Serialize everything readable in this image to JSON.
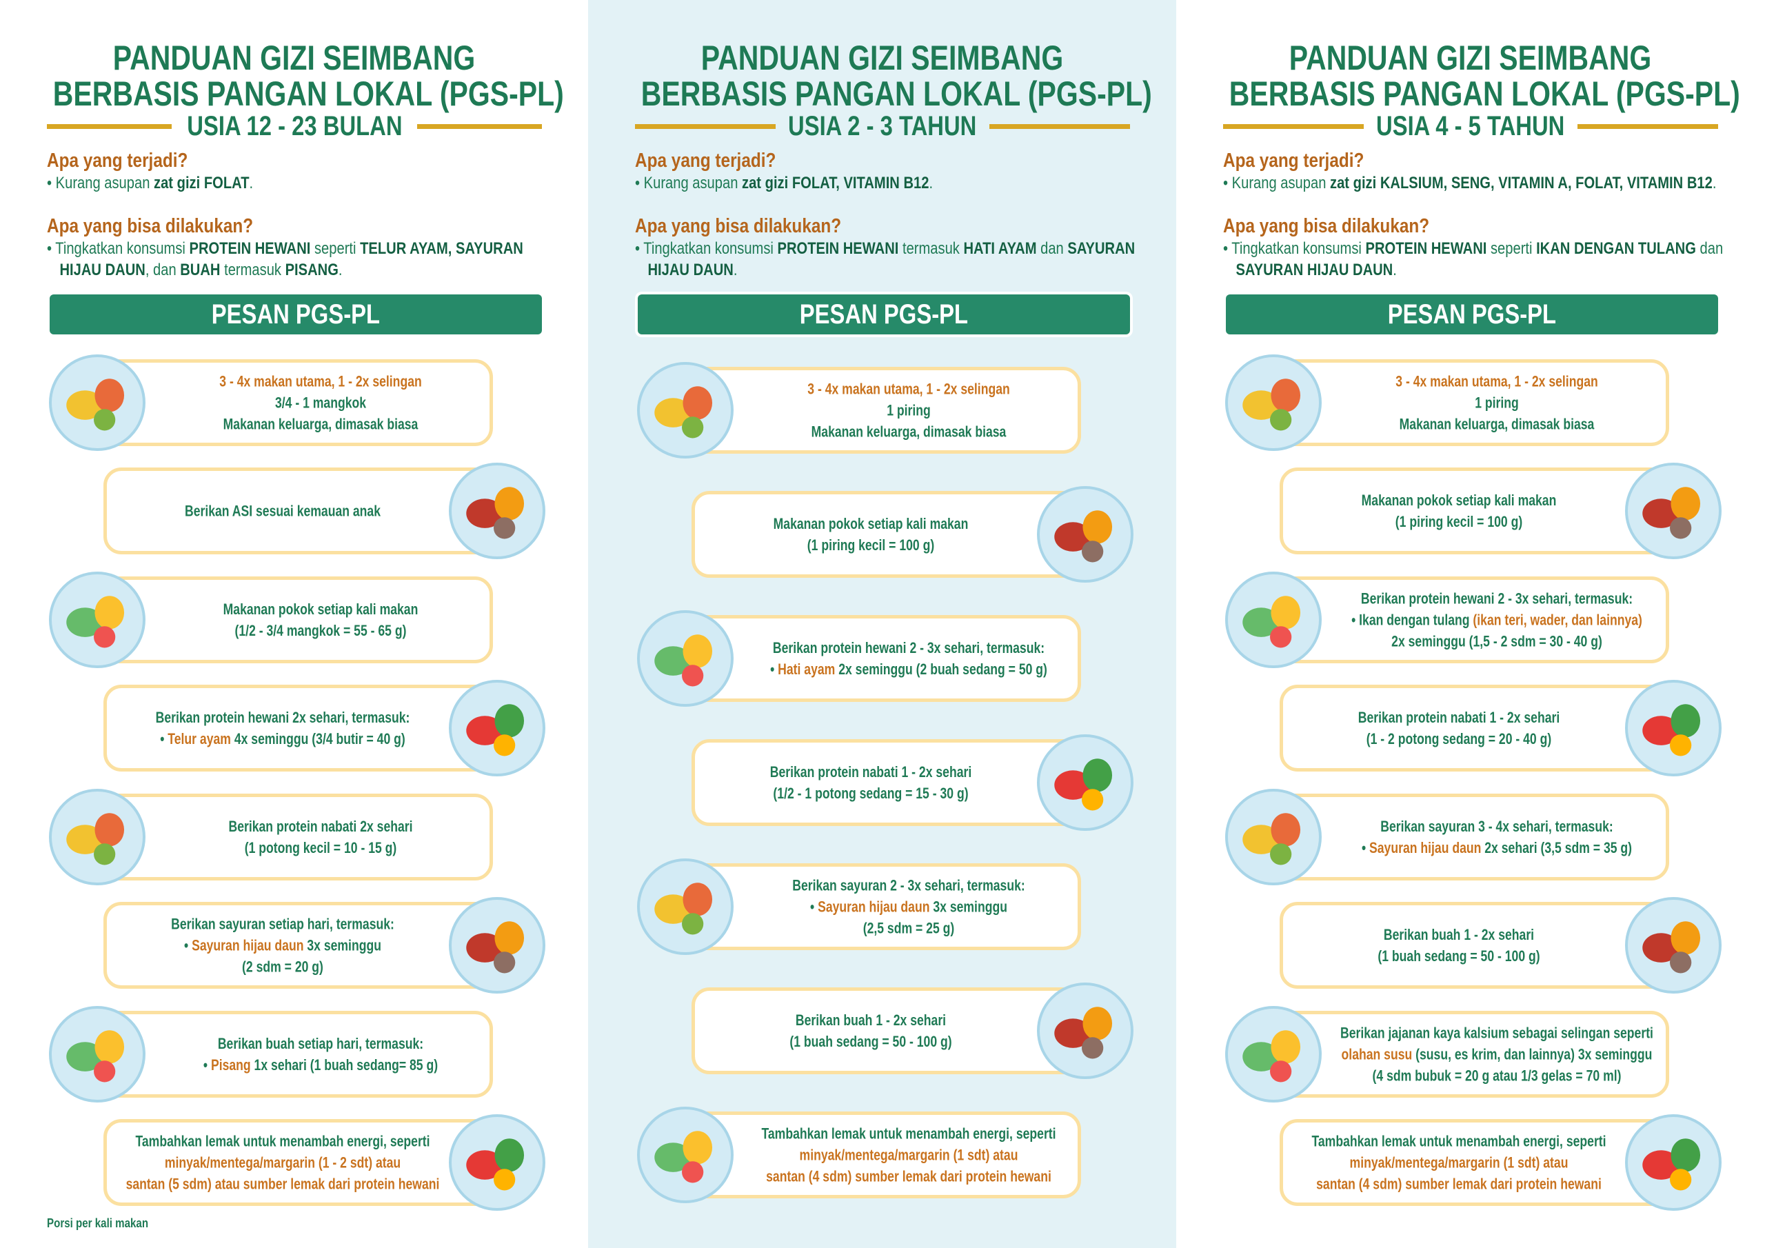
{
  "columns": [
    {
      "title": [
        "PANDUAN GIZI SEIMBANG",
        "BERBASIS PANGAN LOKAL (PGS-PL)"
      ],
      "subtitle": "USIA 12 - 23 BULAN",
      "sections": [
        {
          "heading": "Apa yang terjadi?",
          "items": [
            [
              {
                "text": "•  Kurang asupan "
              },
              {
                "text": "zat gizi FOLAT",
                "bold": true
              },
              {
                "text": "."
              }
            ]
          ]
        },
        {
          "heading": "Apa yang bisa dilakukan?",
          "items": [
            [
              {
                "text": "•  Tingkatkan konsumsi "
              },
              {
                "text": "PROTEIN HEWANI",
                "bold": true
              },
              {
                "text": " seperti "
              },
              {
                "text": "TELUR AYAM, SAYURAN HIJAU DAUN",
                "bold": true
              },
              {
                "text": ", dan "
              },
              {
                "text": "BUAH",
                "bold": true
              },
              {
                "text": " termasuk "
              },
              {
                "text": "PISANG",
                "bold": true
              },
              {
                "text": "."
              }
            ]
          ]
        }
      ],
      "banner": "PESAN PGS-PL",
      "cards": [
        {
          "icon": "left",
          "lines": [
            [
              {
                "text": "3 - 4x makan utama, 1 - 2x selingan",
                "color": "#c9731f"
              }
            ],
            [
              {
                "text": "3/4 - 1 mangkok"
              }
            ],
            [
              {
                "text": "Makanan keluarga, dimasak biasa"
              }
            ]
          ]
        },
        {
          "icon": "right",
          "lines": [
            [
              {
                "text": "Berikan ASI sesuai kemauan anak"
              }
            ]
          ]
        },
        {
          "icon": "left",
          "lines": [
            [
              {
                "text": "Makanan pokok setiap kali makan"
              }
            ],
            [
              {
                "text": "(1/2 - 3/4 mangkok = 55 - 65 g)"
              }
            ]
          ]
        },
        {
          "icon": "right",
          "lines": [
            [
              {
                "text": "Berikan protein hewani 2x sehari, termasuk:"
              }
            ],
            [
              {
                "text": "• "
              },
              {
                "text": "Telur ayam",
                "color": "#c9731f"
              },
              {
                "text": " 4x seminggu  (3/4 butir = 40 g)"
              }
            ]
          ]
        },
        {
          "icon": "left",
          "lines": [
            [
              {
                "text": "Berikan protein nabati 2x sehari"
              }
            ],
            [
              {
                "text": "(1 potong kecil = 10 - 15 g)"
              }
            ]
          ]
        },
        {
          "icon": "right",
          "lines": [
            [
              {
                "text": "Berikan sayuran setiap hari, termasuk:"
              }
            ],
            [
              {
                "text": "• "
              },
              {
                "text": "Sayuran hijau daun",
                "color": "#c9731f"
              },
              {
                "text": " 3x seminggu"
              }
            ],
            [
              {
                "text": "(2 sdm = 20 g)"
              }
            ]
          ]
        },
        {
          "icon": "left",
          "lines": [
            [
              {
                "text": "Berikan buah setiap hari, termasuk:"
              }
            ],
            [
              {
                "text": "• "
              },
              {
                "text": "Pisang",
                "color": "#c9731f"
              },
              {
                "text": " 1x sehari (1 buah sedang= 85 g)"
              }
            ]
          ]
        },
        {
          "icon": "right",
          "lines": [
            [
              {
                "text": "Tambahkan lemak untuk menambah energi, seperti"
              }
            ],
            [
              {
                "text": "minyak/mentega/margarin (1 - 2 sdt) atau",
                "color": "#c9731f"
              }
            ],
            [
              {
                "text": "santan (5 sdm) atau sumber lemak dari protein hewani",
                "color": "#c9731f"
              }
            ]
          ]
        }
      ],
      "footnote": "Porsi per kali makan"
    },
    {
      "title": [
        "PANDUAN GIZI SEIMBANG",
        "BERBASIS PANGAN LOKAL (PGS-PL)"
      ],
      "subtitle": "USIA 2 - 3 TAHUN",
      "sections": [
        {
          "heading": "Apa yang terjadi?",
          "items": [
            [
              {
                "text": "•  Kurang asupan "
              },
              {
                "text": "zat gizi FOLAT, VITAMIN B12",
                "bold": true
              },
              {
                "text": "."
              }
            ]
          ]
        },
        {
          "heading": "Apa yang bisa dilakukan?",
          "items": [
            [
              {
                "text": "•  Tingkatkan konsumsi "
              },
              {
                "text": "PROTEIN HEWANI",
                "bold": true
              },
              {
                "text": " termasuk "
              },
              {
                "text": "HATI AYAM",
                "bold": true
              },
              {
                "text": " dan "
              },
              {
                "text": "SAYURAN HIJAU DAUN",
                "bold": true
              },
              {
                "text": "."
              }
            ]
          ]
        }
      ],
      "banner": "PESAN PGS-PL",
      "cards": [
        {
          "icon": "left",
          "lines": [
            [
              {
                "text": "3 - 4x makan utama, 1 - 2x selingan",
                "color": "#c9731f"
              }
            ],
            [
              {
                "text": "1 piring"
              }
            ],
            [
              {
                "text": "Makanan keluarga, dimasak biasa"
              }
            ]
          ]
        },
        {
          "icon": "right",
          "lines": [
            [
              {
                "text": "Makanan pokok setiap kali makan"
              }
            ],
            [
              {
                "text": "(1 piring kecil = 100 g)"
              }
            ]
          ]
        },
        {
          "icon": "left",
          "lines": [
            [
              {
                "text": "Berikan protein hewani 2 - 3x sehari, termasuk:"
              }
            ],
            [
              {
                "text": "• "
              },
              {
                "text": "Hati ayam",
                "color": "#c9731f"
              },
              {
                "text": " 2x seminggu  (2 buah sedang = 50 g)"
              }
            ]
          ]
        },
        {
          "icon": "right",
          "lines": [
            [
              {
                "text": "Berikan protein nabati 1 - 2x sehari"
              }
            ],
            [
              {
                "text": "(1/2 - 1 potong sedang = 15 - 30 g)"
              }
            ]
          ]
        },
        {
          "icon": "left",
          "lines": [
            [
              {
                "text": "Berikan sayuran 2 - 3x sehari, termasuk:"
              }
            ],
            [
              {
                "text": "• "
              },
              {
                "text": "Sayuran hijau daun",
                "color": "#c9731f"
              },
              {
                "text": " 3x seminggu"
              }
            ],
            [
              {
                "text": "(2,5 sdm = 25 g)"
              }
            ]
          ]
        },
        {
          "icon": "right",
          "lines": [
            [
              {
                "text": "Berikan buah 1 - 2x sehari"
              }
            ],
            [
              {
                "text": "(1 buah sedang = 50 - 100 g)"
              }
            ]
          ]
        },
        {
          "icon": "left",
          "lines": [
            [
              {
                "text": "Tambahkan lemak untuk menambah energi, seperti"
              }
            ],
            [
              {
                "text": "minyak/mentega/margarin (1 sdt) atau",
                "color": "#c9731f"
              }
            ],
            [
              {
                "text": "santan (4 sdm) sumber lemak dari protein hewani",
                "color": "#c9731f"
              }
            ]
          ]
        }
      ]
    },
    {
      "title": [
        "PANDUAN GIZI SEIMBANG",
        "BERBASIS PANGAN LOKAL (PGS-PL)"
      ],
      "subtitle": "USIA 4 - 5 TAHUN",
      "sections": [
        {
          "heading": "Apa yang terjadi?",
          "items": [
            [
              {
                "text": "•  Kurang asupan "
              },
              {
                "text": "zat gizi KALSIUM, SENG, VITAMIN A, FOLAT, VITAMIN B12",
                "bold": true
              },
              {
                "text": "."
              }
            ]
          ]
        },
        {
          "heading": "Apa yang bisa dilakukan?",
          "items": [
            [
              {
                "text": "•  Tingkatkan konsumsi "
              },
              {
                "text": "PROTEIN HEWANI",
                "bold": true
              },
              {
                "text": " seperti "
              },
              {
                "text": "IKAN DENGAN TULANG",
                "bold": true
              },
              {
                "text": " dan "
              },
              {
                "text": "SAYURAN HIJAU DAUN",
                "bold": true
              },
              {
                "text": "."
              }
            ]
          ]
        }
      ],
      "banner": "PESAN PGS-PL",
      "cards": [
        {
          "icon": "left",
          "lines": [
            [
              {
                "text": "3 - 4x makan utama, 1 - 2x selingan",
                "color": "#c9731f"
              }
            ],
            [
              {
                "text": "1 piring"
              }
            ],
            [
              {
                "text": "Makanan keluarga, dimasak biasa"
              }
            ]
          ]
        },
        {
          "icon": "right",
          "lines": [
            [
              {
                "text": "Makanan pokok setiap kali makan"
              }
            ],
            [
              {
                "text": "(1 piring kecil = 100 g)"
              }
            ]
          ]
        },
        {
          "icon": "left",
          "lines": [
            [
              {
                "text": "Berikan protein hewani 2 - 3x sehari, termasuk:"
              }
            ],
            [
              {
                "text": "• Ikan dengan tulang "
              },
              {
                "text": "(ikan teri, wader, dan lainnya)",
                "color": "#c9731f"
              }
            ],
            [
              {
                "text": "2x seminggu (1,5 - 2 sdm = 30 - 40 g)"
              }
            ]
          ]
        },
        {
          "icon": "right",
          "lines": [
            [
              {
                "text": "Berikan protein nabati 1 - 2x sehari"
              }
            ],
            [
              {
                "text": "(1 - 2 potong sedang = 20 - 40 g)"
              }
            ]
          ]
        },
        {
          "icon": "left",
          "lines": [
            [
              {
                "text": "Berikan sayuran 3 - 4x sehari, termasuk:"
              }
            ],
            [
              {
                "text": "• "
              },
              {
                "text": "Sayuran hijau daun",
                "color": "#c9731f"
              },
              {
                "text": " 2x sehari (3,5 sdm = 35 g)"
              }
            ]
          ]
        },
        {
          "icon": "right",
          "lines": [
            [
              {
                "text": "Berikan buah 1 - 2x sehari"
              }
            ],
            [
              {
                "text": "(1 buah sedang = 50 - 100 g)"
              }
            ]
          ]
        },
        {
          "icon": "left",
          "lines": [
            [
              {
                "text": "Berikan jajanan kaya kalsium sebagai selingan seperti"
              }
            ],
            [
              {
                "text": "olahan susu",
                "color": "#c9731f"
              },
              {
                "text": " (susu, es krim, dan lainnya) 3x seminggu"
              }
            ],
            [
              {
                "text": "(4 sdm bubuk = 20 g atau 1/3 gelas = 70 ml)"
              }
            ]
          ]
        },
        {
          "icon": "right",
          "lines": [
            [
              {
                "text": "Tambahkan lemak untuk menambah energi, seperti"
              }
            ],
            [
              {
                "text": "minyak/mentega/margarin (1 sdt) atau",
                "color": "#c9731f"
              }
            ],
            [
              {
                "text": "santan (4 sdm) sumber lemak dari protein hewani",
                "color": "#c9731f"
              }
            ]
          ]
        }
      ]
    }
  ]
}
